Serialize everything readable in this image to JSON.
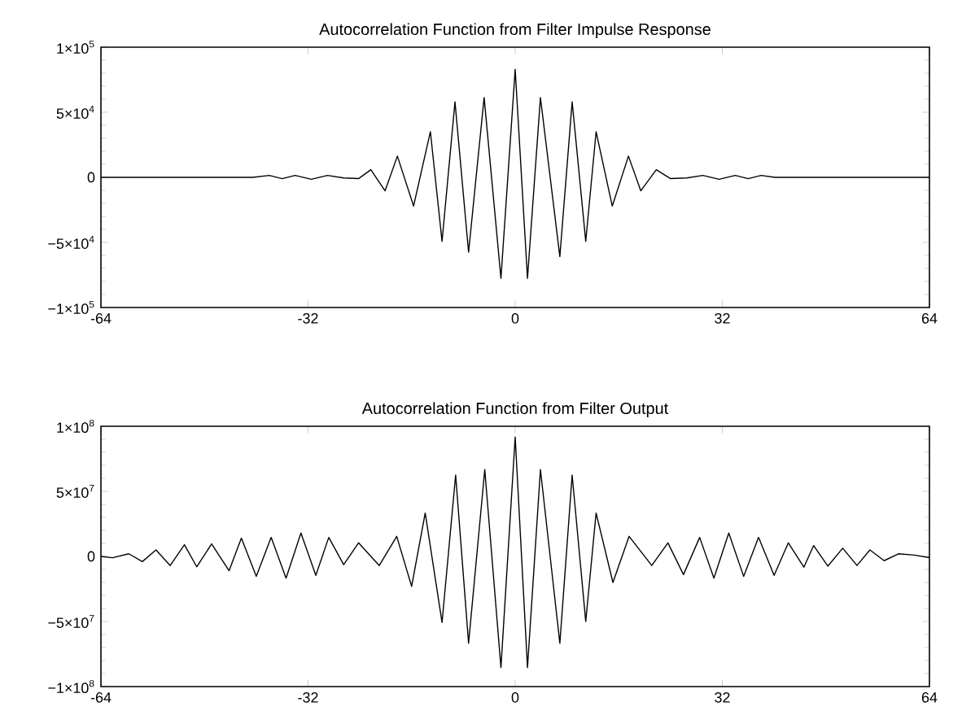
{
  "chart_data": [
    {
      "type": "line",
      "title": "Autocorrelation Function from Filter Impulse Response",
      "series": [
        {
          "color": "#000000",
          "x": [
            -64,
            -40.5,
            -38,
            -36,
            -34,
            -31.5,
            -29,
            -26.5,
            -24.2,
            -22.3,
            -20.1,
            -18.2,
            -15.7,
            -13.1,
            -11.3,
            -9.3,
            -7.2,
            -4.8,
            -2.2,
            0,
            1.9,
            3.9,
            6.9,
            8.8,
            10.9,
            12.5,
            15,
            17.5,
            19.4,
            21.8,
            24,
            26.5,
            29,
            31.5,
            34,
            36,
            38,
            40.1,
            64
          ],
          "values": [
            0,
            0,
            1500,
            -1000,
            1500,
            -1500,
            1500,
            -500,
            -1000,
            5800,
            -10400,
            16300,
            -22100,
            35000,
            -49200,
            58000,
            -57500,
            61300,
            -77600,
            83000,
            -77600,
            61300,
            -60900,
            58000,
            -49200,
            35000,
            -22100,
            16300,
            -10400,
            5800,
            -1000,
            -500,
            1500,
            -1500,
            1500,
            -1000,
            1500,
            0,
            0
          ]
        }
      ],
      "xlim": [
        -64,
        64
      ],
      "xticks": [
        -64,
        -32,
        0,
        32,
        64
      ],
      "ylim": [
        -100000,
        100000
      ],
      "yticks": [
        {
          "value": -100000,
          "label": "−1×10$^{5}$"
        },
        {
          "value": -50000,
          "label": "−5×10$^{4}$"
        },
        {
          "value": 0,
          "label": "0"
        },
        {
          "value": 50000,
          "label": "5×10$^{4}$"
        },
        {
          "value": 100000,
          "label": "1×10$^{5}$"
        }
      ]
    },
    {
      "type": "line",
      "title": "Autocorrelation Function from Filter Output",
      "series": [
        {
          "color": "#000000",
          "x": [
            -64,
            -62.2,
            -59.7,
            -57.6,
            -55.5,
            -53.3,
            -51.1,
            -49.2,
            -46.9,
            -44.2,
            -42.3,
            -40.0,
            -37.7,
            -35.4,
            -33.1,
            -30.8,
            -28.8,
            -26.5,
            -24.2,
            -21.0,
            -18.3,
            -16.0,
            -13.9,
            -11.3,
            -9.2,
            -7.2,
            -4.7,
            -2.2,
            0,
            1.9,
            3.9,
            6.9,
            8.8,
            10.9,
            12.5,
            15.1,
            17.6,
            21.1,
            23.6,
            26.0,
            28.5,
            30.7,
            33.0,
            35.3,
            37.6,
            40.0,
            42.2,
            44.6,
            46.1,
            48.3,
            50.6,
            52.8,
            54.8,
            57.0,
            59.2,
            61.7,
            64
          ],
          "values": [
            0,
            -1000000,
            2000000,
            -4000000,
            5000000,
            -7000000,
            9000000,
            -8000000,
            9600000,
            -11000000,
            14000000,
            -15400000,
            14600000,
            -16700000,
            18000000,
            -14600000,
            14600000,
            -6300000,
            10400000,
            -7000000,
            15400000,
            -23000000,
            33300000,
            -50800000,
            62500000,
            -66700000,
            66700000,
            -85400000,
            91700000,
            -85400000,
            66700000,
            -66700000,
            62500000,
            -50000000,
            33300000,
            -20000000,
            15400000,
            -7000000,
            10400000,
            -14000000,
            14600000,
            -16700000,
            18000000,
            -15400000,
            14600000,
            -14600000,
            10400000,
            -8300000,
            8300000,
            -7500000,
            6300000,
            -7000000,
            5000000,
            -3300000,
            2000000,
            1000000,
            -1000000
          ]
        }
      ],
      "xlim": [
        -64,
        64
      ],
      "xticks": [
        -64,
        -32,
        0,
        32,
        64
      ],
      "ylim": [
        -100000000,
        100000000
      ],
      "yticks": [
        {
          "value": -100000000,
          "label": "−1×10$^{8}$"
        },
        {
          "value": -50000000,
          "label": "−5×10$^{7}$"
        },
        {
          "value": 0,
          "label": "0"
        },
        {
          "value": 50000000,
          "label": "5×10$^{7}$"
        },
        {
          "value": 100000000,
          "label": "1×10$^{8}$"
        }
      ]
    }
  ]
}
